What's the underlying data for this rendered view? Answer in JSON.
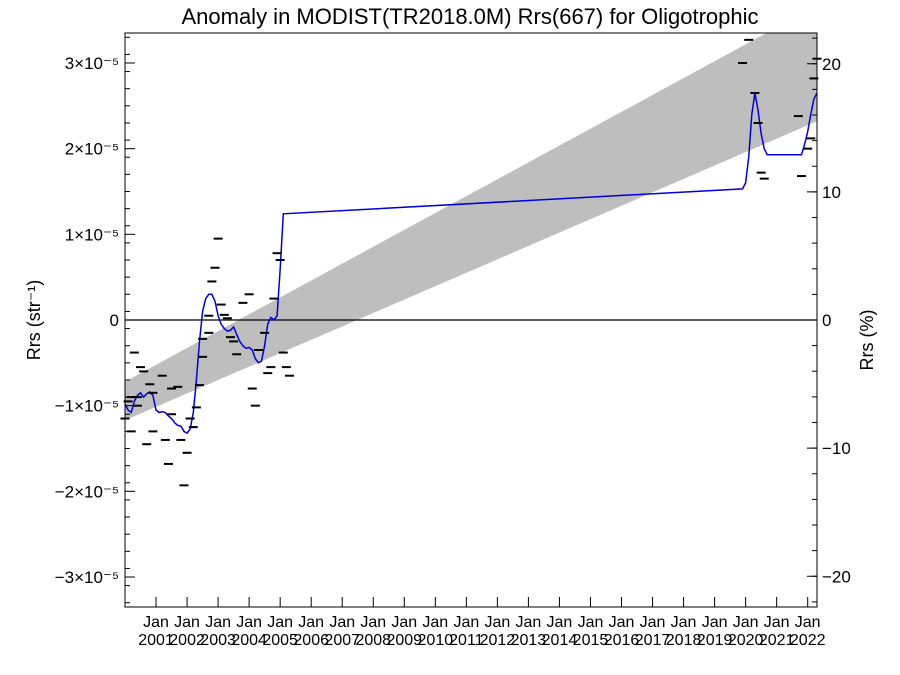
{
  "chart_data": {
    "type": "line",
    "title": "Anomaly in MODIST(TR2018.0M) Rrs(667) for Oligotrophic",
    "ylabel_left": "Rrs (str⁻¹)",
    "ylabel_right": "Rrs (%)",
    "ylim_left": [
      -3.35e-05,
      3.35e-05
    ],
    "ylim_right": [
      -22.4,
      22.4
    ],
    "xlim": [
      2000.0,
      2022.3
    ],
    "grid": false,
    "left_ticks": [
      {
        "value": 3e-05,
        "label": "3×10⁻⁵"
      },
      {
        "value": 2e-05,
        "label": "2×10⁻⁵"
      },
      {
        "value": 1e-05,
        "label": "1×10⁻⁵"
      },
      {
        "value": 0,
        "label": "0"
      },
      {
        "value": -1e-05,
        "label": "−1×10⁻⁵"
      },
      {
        "value": -2e-05,
        "label": "−2×10⁻⁵"
      },
      {
        "value": -3e-05,
        "label": "−3×10⁻⁵"
      }
    ],
    "right_ticks": [
      {
        "value": 20,
        "label": "20"
      },
      {
        "value": 10,
        "label": "10"
      },
      {
        "value": 0,
        "label": "0"
      },
      {
        "value": -10,
        "label": "−10"
      },
      {
        "value": -20,
        "label": "−20"
      }
    ],
    "x_ticks": [
      {
        "value": 2001,
        "label_top": "Jan",
        "label_bottom": "2001"
      },
      {
        "value": 2002,
        "label_top": "Jan",
        "label_bottom": "2002"
      },
      {
        "value": 2003,
        "label_top": "Jan",
        "label_bottom": "2003"
      },
      {
        "value": 2004,
        "label_top": "Jan",
        "label_bottom": "2004"
      },
      {
        "value": 2005,
        "label_top": "Jan",
        "label_bottom": "2005"
      },
      {
        "value": 2006,
        "label_top": "Jan",
        "label_bottom": "2006"
      },
      {
        "value": 2007,
        "label_top": "Jan",
        "label_bottom": "2007"
      },
      {
        "value": 2008,
        "label_top": "Jan",
        "label_bottom": "2008"
      },
      {
        "value": 2009,
        "label_top": "Jan",
        "label_bottom": "2009"
      },
      {
        "value": 2010,
        "label_top": "Jan",
        "label_bottom": "2010"
      },
      {
        "value": 2011,
        "label_top": "Jan",
        "label_bottom": "2011"
      },
      {
        "value": 2012,
        "label_top": "Jan",
        "label_bottom": "2012"
      },
      {
        "value": 2013,
        "label_top": "Jan",
        "label_bottom": "2013"
      },
      {
        "value": 2014,
        "label_top": "Jan",
        "label_bottom": "2014"
      },
      {
        "value": 2015,
        "label_top": "Jan",
        "label_bottom": "2015"
      },
      {
        "value": 2016,
        "label_top": "Jan",
        "label_bottom": "2016"
      },
      {
        "value": 2017,
        "label_top": "Jan",
        "label_bottom": "2017"
      },
      {
        "value": 2018,
        "label_top": "Jan",
        "label_bottom": "2018"
      },
      {
        "value": 2019,
        "label_top": "Jan",
        "label_bottom": "2019"
      },
      {
        "value": 2020,
        "label_top": "Jan",
        "label_bottom": "2020"
      },
      {
        "value": 2021,
        "label_top": "Jan",
        "label_bottom": "2021"
      },
      {
        "value": 2022,
        "label_top": "Jan",
        "label_bottom": "2022"
      }
    ],
    "band": {
      "color": "#bebebe",
      "x": [
        2000.0,
        2022.3
      ],
      "upper": [
        -7.2e-06,
        3.67e-05
      ],
      "lower": [
        -1.17e-05,
        2.32e-05
      ]
    },
    "zero_line": {
      "value": 0,
      "color": "#000000"
    },
    "series": [
      {
        "type": "line",
        "color": "#0000dd",
        "points": [
          [
            2000.0,
            -9.8e-06
          ],
          [
            2000.1,
            -1.05e-05
          ],
          [
            2000.2,
            -1.08e-05
          ],
          [
            2000.3,
            -9.5e-06
          ],
          [
            2000.4,
            -8.8e-06
          ],
          [
            2000.5,
            -8.5e-06
          ],
          [
            2000.6,
            -9e-06
          ],
          [
            2000.7,
            -8.6e-06
          ],
          [
            2000.8,
            -8.4e-06
          ],
          [
            2000.9,
            -8.8e-06
          ],
          [
            2001.0,
            -1.05e-05
          ],
          [
            2001.1,
            -1.08e-05
          ],
          [
            2001.2,
            -1.07e-05
          ],
          [
            2001.3,
            -1.08e-05
          ],
          [
            2001.4,
            -1.12e-05
          ],
          [
            2001.5,
            -1.15e-05
          ],
          [
            2001.6,
            -1.2e-05
          ],
          [
            2001.7,
            -1.23e-05
          ],
          [
            2001.8,
            -1.24e-05
          ],
          [
            2001.9,
            -1.3e-05
          ],
          [
            2002.0,
            -1.32e-05
          ],
          [
            2002.1,
            -1.27e-05
          ],
          [
            2002.2,
            -1.08e-05
          ],
          [
            2002.3,
            -7e-06
          ],
          [
            2002.4,
            -2.5e-06
          ],
          [
            2002.5,
            1e-06
          ],
          [
            2002.6,
            2.5e-06
          ],
          [
            2002.7,
            3e-06
          ],
          [
            2002.8,
            3e-06
          ],
          [
            2002.9,
            2.2e-06
          ],
          [
            2003.0,
            5e-07
          ],
          [
            2003.1,
            -5e-07
          ],
          [
            2003.2,
            -1e-06
          ],
          [
            2003.3,
            -1.3e-06
          ],
          [
            2003.4,
            -1.2e-06
          ],
          [
            2003.5,
            -8e-07
          ],
          [
            2003.6,
            -1.7e-06
          ],
          [
            2003.7,
            -2.5e-06
          ],
          [
            2003.8,
            -3e-06
          ],
          [
            2003.9,
            -3.3e-06
          ],
          [
            2004.0,
            -3.2e-06
          ],
          [
            2004.1,
            -3.5e-06
          ],
          [
            2004.2,
            -4.5e-06
          ],
          [
            2004.3,
            -5e-06
          ],
          [
            2004.4,
            -4.8e-06
          ],
          [
            2004.5,
            -3e-06
          ],
          [
            2004.6,
            -5e-07
          ],
          [
            2004.7,
            3e-07
          ],
          [
            2004.8,
            0.0
          ],
          [
            2004.9,
            5e-07
          ],
          [
            2005.0,
            6e-06
          ],
          [
            2005.1,
            1.24e-05
          ],
          [
            2019.9,
            1.53e-05
          ],
          [
            2020.0,
            1.6e-05
          ],
          [
            2020.1,
            1.9e-05
          ],
          [
            2020.2,
            2.4e-05
          ],
          [
            2020.3,
            2.65e-05
          ],
          [
            2020.4,
            2.45e-05
          ],
          [
            2020.5,
            2.18e-05
          ],
          [
            2020.6,
            2e-05
          ],
          [
            2020.7,
            1.93e-05
          ],
          [
            2021.8,
            1.93e-05
          ],
          [
            2021.9,
            2.05e-05
          ],
          [
            2022.0,
            2.2e-05
          ],
          [
            2022.1,
            2.4e-05
          ],
          [
            2022.2,
            2.58e-05
          ],
          [
            2022.3,
            2.65e-05
          ]
        ]
      },
      {
        "type": "scatter",
        "marker": "dash",
        "color": "#000000",
        "points": [
          [
            2000.0,
            -1.15e-05
          ],
          [
            2000.1,
            -9.5e-06
          ],
          [
            2000.2,
            -9e-06
          ],
          [
            2000.2,
            -1.3e-05
          ],
          [
            2000.3,
            -3.8e-06
          ],
          [
            2000.4,
            -9e-06
          ],
          [
            2000.4,
            -1e-05
          ],
          [
            2000.5,
            -5.5e-06
          ],
          [
            2000.6,
            -6e-06
          ],
          [
            2000.7,
            -1.45e-05
          ],
          [
            2000.8,
            -7.5e-06
          ],
          [
            2000.9,
            -8.5e-06
          ],
          [
            2000.9,
            -1.3e-05
          ],
          [
            2001.2,
            -6.5e-06
          ],
          [
            2001.3,
            -1.4e-05
          ],
          [
            2001.4,
            -1.68e-05
          ],
          [
            2001.5,
            -8e-06
          ],
          [
            2001.5,
            -1.1e-05
          ],
          [
            2001.7,
            -7.8e-06
          ],
          [
            2001.8,
            -1.4e-05
          ],
          [
            2001.9,
            -1.93e-05
          ],
          [
            2002.0,
            -1.55e-05
          ],
          [
            2002.1,
            -1.15e-05
          ],
          [
            2002.2,
            -1.25e-05
          ],
          [
            2002.3,
            -1.02e-05
          ],
          [
            2002.4,
            -7.6e-06
          ],
          [
            2002.5,
            -4.3e-06
          ],
          [
            2002.5,
            -2.2e-06
          ],
          [
            2002.7,
            5e-07
          ],
          [
            2002.7,
            -1.5e-06
          ],
          [
            2002.8,
            4.5e-06
          ],
          [
            2002.9,
            6.1e-06
          ],
          [
            2003.0,
            9.5e-06
          ],
          [
            2003.1,
            1.8e-06
          ],
          [
            2003.2,
            6e-07
          ],
          [
            2003.3,
            2e-07
          ],
          [
            2003.4,
            -2e-06
          ],
          [
            2003.5,
            -2.5e-06
          ],
          [
            2003.6,
            -4e-06
          ],
          [
            2003.8,
            2e-06
          ],
          [
            2004.0,
            3e-06
          ],
          [
            2004.1,
            -8e-06
          ],
          [
            2004.2,
            -1e-05
          ],
          [
            2004.3,
            -3.5e-06
          ],
          [
            2004.5,
            -1.5e-06
          ],
          [
            2004.6,
            -6.2e-06
          ],
          [
            2004.7,
            -5.5e-06
          ],
          [
            2004.8,
            2.5e-06
          ],
          [
            2004.9,
            7.8e-06
          ],
          [
            2005.0,
            7e-06
          ],
          [
            2005.1,
            -3.8e-06
          ],
          [
            2005.2,
            -5.5e-06
          ],
          [
            2005.3,
            -6.5e-06
          ],
          [
            2019.9,
            3e-05
          ],
          [
            2020.1,
            3.27e-05
          ],
          [
            2020.3,
            2.65e-05
          ],
          [
            2020.4,
            2.3e-05
          ],
          [
            2020.5,
            1.72e-05
          ],
          [
            2020.6,
            1.65e-05
          ],
          [
            2021.7,
            2.38e-05
          ],
          [
            2021.8,
            1.68e-05
          ],
          [
            2022.0,
            2e-05
          ],
          [
            2022.1,
            2.12e-05
          ],
          [
            2022.2,
            2.82e-05
          ],
          [
            2022.3,
            3.05e-05
          ]
        ]
      }
    ]
  }
}
